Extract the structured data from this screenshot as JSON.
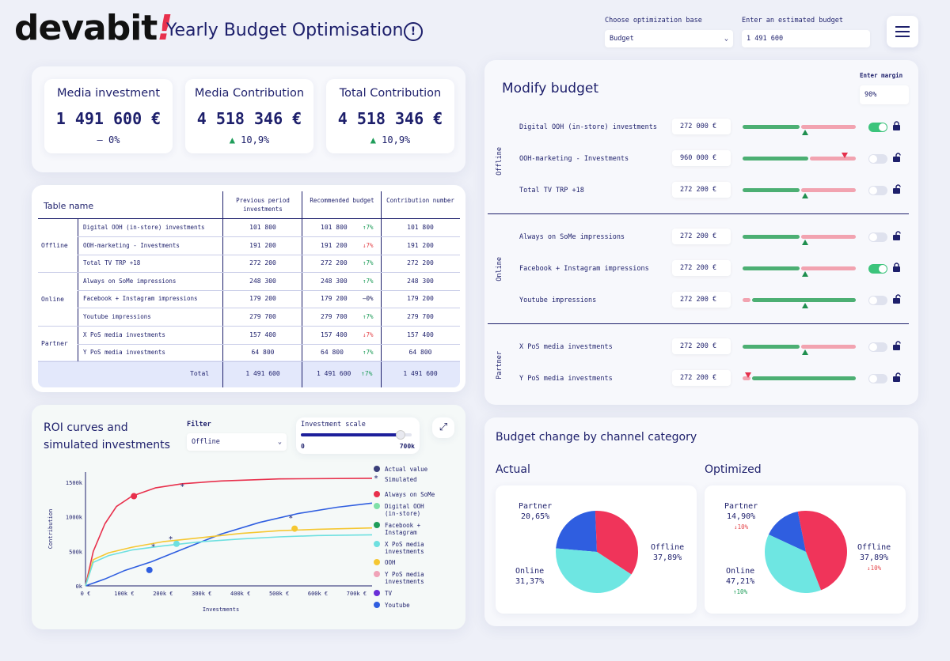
{
  "header": {
    "logo": "devabit",
    "logo_mark": "!",
    "title": "Yearly Budget Optimisation",
    "opt_base_label": "Choose optimization base",
    "opt_base_value": "Budget",
    "budget_label": "Enter an estimated budget",
    "budget_value": "1 491 600"
  },
  "kpis": [
    {
      "title": "Media investment",
      "value": "1 491 600 €",
      "delta": "0%",
      "dir": "flat"
    },
    {
      "title": "Media Contribution",
      "value": "4 518 346 €",
      "delta": "10,9%",
      "dir": "up"
    },
    {
      "title": "Total Contribution",
      "value": "4 518 346 €",
      "delta": "10,9%",
      "dir": "up"
    }
  ],
  "table": {
    "name": "Table name",
    "col1": "Previous period investments",
    "col2": "Recommended budget",
    "col3": "Contribution number",
    "groups": [
      {
        "name": "Offline",
        "rows": [
          {
            "ch": "Digital OOH (in-store) investments",
            "prev": "101 800",
            "rec": "101 800",
            "chg": "7%",
            "dir": "up",
            "contrib": "101 800"
          },
          {
            "ch": "OOH-marketing - Investments",
            "prev": "191 200",
            "rec": "191 200",
            "chg": "7%",
            "dir": "down",
            "contrib": "191 200"
          },
          {
            "ch": "Total TV TRP +18",
            "prev": "272 200",
            "rec": "272 200",
            "chg": "7%",
            "dir": "up",
            "contrib": "272 200"
          }
        ]
      },
      {
        "name": "Online",
        "rows": [
          {
            "ch": "Always on SoMe impressions",
            "prev": "248 300",
            "rec": "248 300",
            "chg": "7%",
            "dir": "up",
            "contrib": "248 300"
          },
          {
            "ch": "Facebook + Instagram impressions",
            "prev": "179 200",
            "rec": "179 200",
            "chg": "0%",
            "dir": "flat",
            "contrib": "179 200"
          },
          {
            "ch": "Youtube impressions",
            "prev": "279 700",
            "rec": "279 700",
            "chg": "7%",
            "dir": "up",
            "contrib": "279 700"
          }
        ]
      },
      {
        "name": "Partner",
        "rows": [
          {
            "ch": "X PoS media investments",
            "prev": "157 400",
            "rec": "157 400",
            "chg": "7%",
            "dir": "down",
            "contrib": "157 400"
          },
          {
            "ch": "Y PoS media investments",
            "prev": "64 800",
            "rec": "64 800",
            "chg": "7%",
            "dir": "up",
            "contrib": "64 800"
          }
        ]
      }
    ],
    "total": {
      "label": "Total",
      "prev": "1 491 600",
      "rec": "1 491 600",
      "chg": "7%",
      "contrib": "1 491 600"
    }
  },
  "modify": {
    "title": "Modify budget",
    "margin_label": "Enter margin",
    "margin_value": "90%",
    "groups": [
      {
        "name": "Offline",
        "rows": [
          {
            "label": "Digital OOH (in-store) investments",
            "value": "272 000 €",
            "on": true
          },
          {
            "label": "OOH-marketing - Investments",
            "value": "960 000 €",
            "on": false
          },
          {
            "label": "Total TV TRP +18",
            "value": "272 200 €",
            "on": false
          }
        ]
      },
      {
        "name": "Online",
        "rows": [
          {
            "label": "Always on SoMe impressions",
            "value": "272 200 €",
            "on": false
          },
          {
            "label": "Facebook + Instagram impressions",
            "value": "272 200 €",
            "on": true
          },
          {
            "label": "Youtube impressions",
            "value": "272 200 €",
            "on": false
          }
        ]
      },
      {
        "name": "Partner",
        "rows": [
          {
            "label": "X PoS media investments",
            "value": "272 200 €",
            "on": false
          },
          {
            "label": "Y PoS media investments",
            "value": "272 200 €",
            "on": false
          }
        ]
      }
    ]
  },
  "roi": {
    "title1": "ROI curves and",
    "title2": "simulated investments",
    "filter_label": "Filter",
    "filter_value": "Offline",
    "scale_label": "Investment scale",
    "scale_min": "0",
    "scale_max": "700k",
    "scale_level": 0.9,
    "legend": [
      "Actual value",
      "Simulated",
      "Always on SoMe",
      "Digital OOH (in-store)",
      "Facebook + Instagram",
      "X PoS media investments",
      "OOH",
      "Y PoS media investments",
      "TV",
      "Youtube"
    ]
  },
  "chart_data": [
    {
      "type": "line",
      "xlabel": "Investments",
      "ylabel": "Contribution",
      "x_ticks": [
        "0 €",
        "100k €",
        "200k €",
        "300k €",
        "400k €",
        "500k €",
        "600k €",
        "700k €"
      ],
      "y_ticks": [
        "0k",
        "500k",
        "1000k",
        "1500k"
      ],
      "xlim": [
        0,
        740
      ],
      "ylim": [
        0,
        1650
      ],
      "series": [
        {
          "name": "Always on SoMe",
          "color": "#e8304c",
          "x": [
            0,
            20,
            50,
            80,
            120,
            180,
            250,
            350,
            500,
            740
          ],
          "y": [
            0,
            500,
            900,
            1150,
            1300,
            1420,
            1480,
            1520,
            1550,
            1560
          ]
        },
        {
          "name": "Youtube",
          "color": "#2f5ee0",
          "x": [
            0,
            50,
            100,
            170,
            250,
            350,
            450,
            550,
            650,
            740
          ],
          "y": [
            0,
            100,
            220,
            350,
            530,
            750,
            920,
            1050,
            1140,
            1200
          ]
        },
        {
          "name": "OOH",
          "color": "#f5c732",
          "x": [
            0,
            20,
            60,
            120,
            200,
            300,
            400,
            500,
            600,
            740
          ],
          "y": [
            0,
            380,
            480,
            560,
            640,
            700,
            760,
            800,
            820,
            840
          ]
        },
        {
          "name": "X PoS media investments",
          "color": "#6ee0e0",
          "x": [
            0,
            20,
            60,
            120,
            200,
            300,
            400,
            500,
            600,
            740
          ],
          "y": [
            0,
            340,
            440,
            520,
            580,
            640,
            680,
            710,
            730,
            740
          ]
        }
      ],
      "actual_points": [
        {
          "x": 125,
          "y": 1300,
          "color": "#e8304c"
        },
        {
          "x": 165,
          "y": 230,
          "color": "#2f5ee0"
        },
        {
          "x": 235,
          "y": 610,
          "color": "#6ee0e0"
        },
        {
          "x": 540,
          "y": 830,
          "color": "#f5c732"
        }
      ],
      "simulated_points": [
        {
          "x": 250,
          "y": 1450
        },
        {
          "x": 220,
          "y": 690
        },
        {
          "x": 175,
          "y": 580
        },
        {
          "x": 530,
          "y": 990
        }
      ]
    },
    {
      "type": "pie",
      "title": "Actual",
      "slices": [
        {
          "name": "Partner",
          "value": 20.65,
          "label": "20,65%",
          "color": "#2f5ee0"
        },
        {
          "name": "Online",
          "value": 31.37,
          "label": "31,37%",
          "color": "#f0345a"
        },
        {
          "name": "Offline",
          "value": 37.89,
          "label": "37,89%",
          "color": "#6ee6e2"
        }
      ]
    },
    {
      "type": "pie",
      "title": "Optimized",
      "slices": [
        {
          "name": "Partner",
          "value": 14.9,
          "label": "14,90%",
          "delta": "10%",
          "dir": "down",
          "color": "#2f5ee0"
        },
        {
          "name": "Online",
          "value": 47.21,
          "label": "47,21%",
          "delta": "10%",
          "dir": "up",
          "color": "#f0345a"
        },
        {
          "name": "Offline",
          "value": 37.89,
          "label": "37,89%",
          "delta": "10%",
          "dir": "down",
          "color": "#6ee6e2"
        }
      ]
    }
  ],
  "budget_change": {
    "title": "Budget change by channel category",
    "actual": "Actual",
    "optimized": "Optimized"
  }
}
